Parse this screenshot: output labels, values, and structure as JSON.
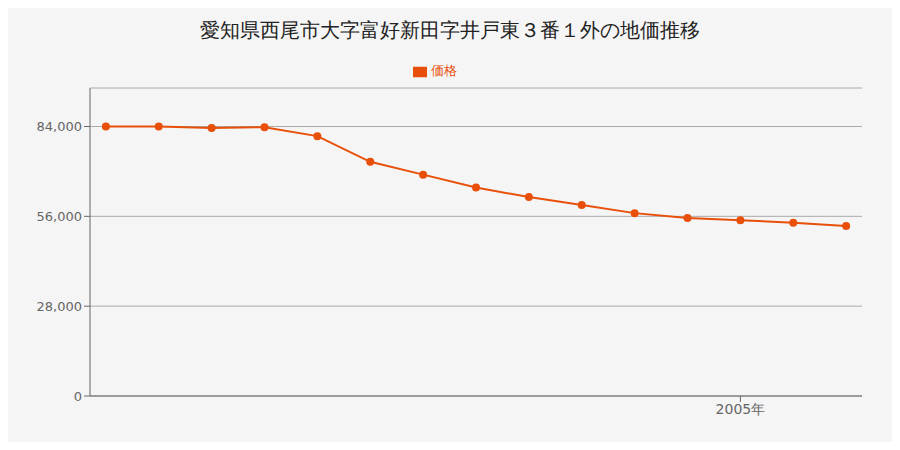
{
  "chart_data": {
    "type": "line",
    "title": "愛知県西尾市大字富好新田字井戸東３番１外の地価推移",
    "x": [
      1993,
      1994,
      1995,
      1996,
      1997,
      1998,
      1999,
      2000,
      2001,
      2002,
      2003,
      2004,
      2005,
      2006,
      2007
    ],
    "series": [
      {
        "name": "価格",
        "color": "#e8500a",
        "values": [
          84000,
          84000,
          83500,
          83800,
          81000,
          73000,
          69000,
          65000,
          62000,
          59500,
          57000,
          55500,
          54800,
          54000,
          53000
        ],
        "marker": "circle"
      }
    ],
    "xlim": [
      1992.7,
      2007.3
    ],
    "xticks": [
      {
        "value": 2005,
        "label": "2005年"
      }
    ],
    "ylim": [
      0,
      96000
    ],
    "yticks": [
      0,
      {
        "value": 28000,
        "label": "28,000"
      },
      {
        "value": 56000,
        "label": "56,000"
      },
      {
        "value": 84000,
        "label": "84,000"
      }
    ],
    "grid": true,
    "legend": "top"
  }
}
